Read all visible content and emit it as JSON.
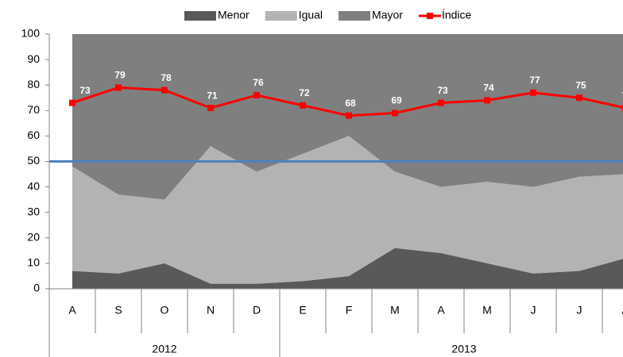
{
  "chart_data": {
    "type": "stacked-area-line",
    "categories": [
      "A",
      "S",
      "O",
      "N",
      "D",
      "E",
      "F",
      "M",
      "A",
      "M",
      "J",
      "J",
      "A"
    ],
    "groups": [
      {
        "label": "2012",
        "count": 5
      },
      {
        "label": "2013",
        "count": 8
      }
    ],
    "series": [
      {
        "name": "Menor",
        "type": "area",
        "color": "#595959",
        "values": [
          7,
          6,
          10,
          2,
          2,
          3,
          5,
          16,
          14,
          10,
          6,
          7,
          12
        ]
      },
      {
        "name": "Igual",
        "type": "area",
        "color": "#b3b3b3",
        "values": [
          41,
          31,
          25,
          54,
          44,
          50,
          55,
          30,
          26,
          32,
          34,
          37,
          33
        ]
      },
      {
        "name": "Mayor",
        "type": "area",
        "color": "#7f7f7f",
        "values": [
          52,
          63,
          65,
          44,
          54,
          47,
          40,
          54,
          60,
          58,
          60,
          56,
          55
        ]
      },
      {
        "name": "Índice",
        "type": "line",
        "color": "#ff0000",
        "values": [
          73,
          79,
          78,
          71,
          76,
          72,
          68,
          69,
          73,
          74,
          77,
          75,
          71
        ]
      }
    ],
    "reference_line": {
      "value": 50,
      "color": "#4f81bd"
    },
    "ylim": [
      0,
      100
    ],
    "yticks": [
      0,
      10,
      20,
      30,
      40,
      50,
      60,
      70,
      80,
      90,
      100
    ]
  }
}
